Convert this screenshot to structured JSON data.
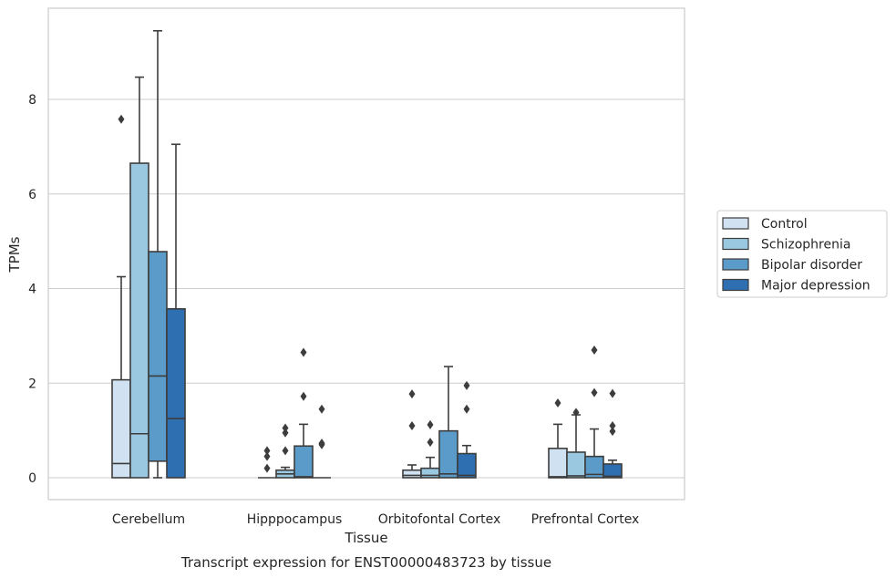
{
  "caption": "Transcript expression for ENST00000483723 by tissue",
  "chart_data": {
    "type": "box",
    "xlabel": "Tissue",
    "ylabel": "TPMs",
    "ylim": [
      -0.45,
      9.85
    ],
    "yticks": [
      0,
      2,
      4,
      6,
      8
    ],
    "grid": "horizontal",
    "legend_position": "right",
    "categories": [
      "Cerebellum",
      "Hipppocampus",
      "Orbitofontal Cortex",
      "Prefrontal Cortex"
    ],
    "series": [
      {
        "name": "Control",
        "color": "#d0e1f2",
        "boxes": [
          {
            "whisker_low": 0,
            "q1": 0,
            "median": 0.3,
            "q3": 2.07,
            "whisker_high": 4.25,
            "outliers": [
              7.58
            ]
          },
          {
            "whisker_low": 0,
            "q1": 0,
            "median": 0,
            "q3": 0,
            "whisker_high": 0,
            "outliers": [
              0.2,
              0.45,
              0.57
            ]
          },
          {
            "whisker_low": 0,
            "q1": 0,
            "median": 0.05,
            "q3": 0.16,
            "whisker_high": 0.27,
            "outliers": [
              1.1,
              1.77
            ]
          },
          {
            "whisker_low": 0,
            "q1": 0,
            "median": 0.02,
            "q3": 0.62,
            "whisker_high": 1.13,
            "outliers": [
              1.58
            ]
          }
        ]
      },
      {
        "name": "Schizophrenia",
        "color": "#9ac8e0",
        "boxes": [
          {
            "whisker_low": 0,
            "q1": 0,
            "median": 0.93,
            "q3": 6.65,
            "whisker_high": 8.47,
            "outliers": []
          },
          {
            "whisker_low": 0,
            "q1": 0,
            "median": 0.08,
            "q3": 0.16,
            "whisker_high": 0.22,
            "outliers": [
              0.57,
              0.95,
              1.05
            ]
          },
          {
            "whisker_low": 0,
            "q1": 0,
            "median": 0.05,
            "q3": 0.2,
            "whisker_high": 0.43,
            "outliers": [
              0.75,
              1.12
            ]
          },
          {
            "whisker_low": 0,
            "q1": 0,
            "median": 0.04,
            "q3": 0.54,
            "whisker_high": 1.33,
            "outliers": [
              1.38
            ]
          }
        ]
      },
      {
        "name": "Bipolar disorder",
        "color": "#5b9bc9",
        "boxes": [
          {
            "whisker_low": 0,
            "q1": 0.35,
            "median": 2.15,
            "q3": 4.78,
            "whisker_high": 9.45,
            "outliers": []
          },
          {
            "whisker_low": 0,
            "q1": 0,
            "median": 0.02,
            "q3": 0.67,
            "whisker_high": 1.13,
            "outliers": [
              1.72,
              2.65
            ]
          },
          {
            "whisker_low": 0,
            "q1": 0,
            "median": 0.08,
            "q3": 0.99,
            "whisker_high": 2.35,
            "outliers": []
          },
          {
            "whisker_low": 0,
            "q1": 0,
            "median": 0.07,
            "q3": 0.45,
            "whisker_high": 1.03,
            "outliers": [
              1.8,
              2.7
            ]
          }
        ]
      },
      {
        "name": "Major depression",
        "color": "#2d6fb0",
        "boxes": [
          {
            "whisker_low": 0,
            "q1": 0,
            "median": 1.25,
            "q3": 3.57,
            "whisker_high": 7.05,
            "outliers": []
          },
          {
            "whisker_low": 0,
            "q1": 0,
            "median": 0,
            "q3": 0,
            "whisker_high": 0,
            "outliers": [
              0.7,
              0.73,
              1.45
            ]
          },
          {
            "whisker_low": 0,
            "q1": 0,
            "median": 0.05,
            "q3": 0.51,
            "whisker_high": 0.68,
            "outliers": [
              1.45,
              1.95
            ]
          },
          {
            "whisker_low": 0,
            "q1": 0,
            "median": 0.03,
            "q3": 0.29,
            "whisker_high": 0.37,
            "outliers": [
              0.98,
              1.1,
              1.78
            ]
          }
        ]
      }
    ]
  }
}
